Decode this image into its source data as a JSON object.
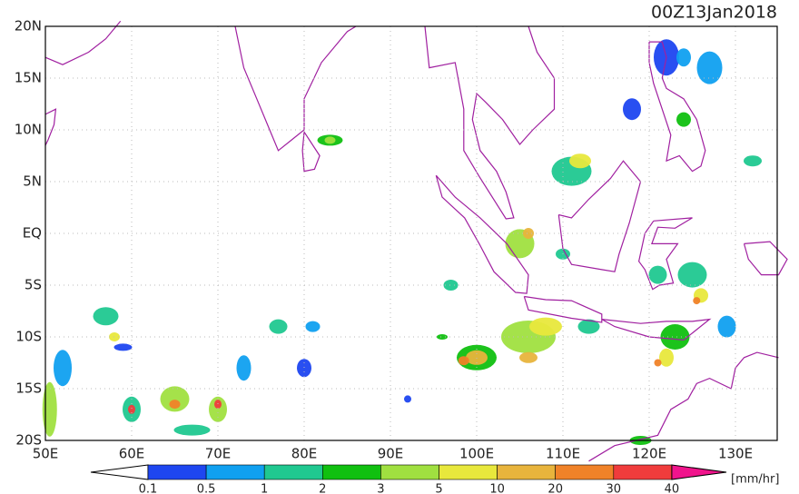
{
  "header": {
    "title": "00Z13Jan2018"
  },
  "map": {
    "lat_labels": [
      "20N",
      "15N",
      "10N",
      "5N",
      "EQ",
      "5S",
      "10S",
      "15S",
      "20S"
    ],
    "lon_labels": [
      "50E",
      "60E",
      "70E",
      "80E",
      "90E",
      "100E",
      "110E",
      "120E",
      "130E"
    ]
  },
  "colorbar": {
    "labels": [
      "0.1",
      "0.5",
      "1",
      "2",
      "3",
      "5",
      "10",
      "20",
      "30",
      "40"
    ],
    "colors": [
      "#1e46f0",
      "#10a0f0",
      "#20c890",
      "#10c010",
      "#a0e040",
      "#e8e83c",
      "#e8b43c",
      "#f08228",
      "#f03c3c"
    ],
    "under_color": "#ffffff",
    "over_color": "#f0148c",
    "unit": "[mm/hr]"
  }
}
